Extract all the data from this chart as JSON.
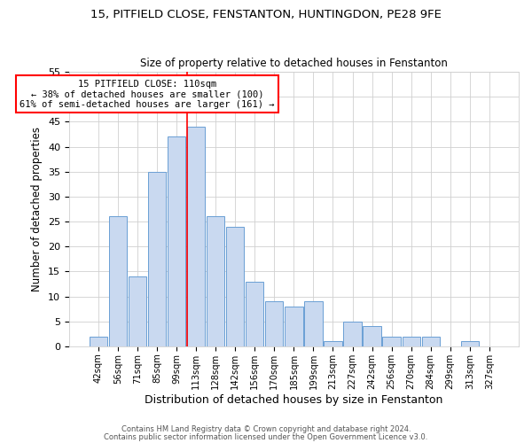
{
  "title": "15, PITFIELD CLOSE, FENSTANTON, HUNTINGDON, PE28 9FE",
  "subtitle": "Size of property relative to detached houses in Fenstanton",
  "xlabel": "Distribution of detached houses by size in Fenstanton",
  "ylabel": "Number of detached properties",
  "bin_labels": [
    "42sqm",
    "56sqm",
    "71sqm",
    "85sqm",
    "99sqm",
    "113sqm",
    "128sqm",
    "142sqm",
    "156sqm",
    "170sqm",
    "185sqm",
    "199sqm",
    "213sqm",
    "227sqm",
    "242sqm",
    "256sqm",
    "270sqm",
    "284sqm",
    "299sqm",
    "313sqm",
    "327sqm"
  ],
  "bar_heights": [
    2,
    26,
    14,
    35,
    42,
    44,
    26,
    24,
    13,
    9,
    8,
    9,
    1,
    5,
    4,
    2,
    2,
    2,
    0,
    1,
    0
  ],
  "bar_color": "#c9d9f0",
  "bar_edge_color": "#6a9fd4",
  "highlight_line_color": "red",
  "annotation_title": "15 PITFIELD CLOSE: 110sqm",
  "annotation_line1": "← 38% of detached houses are smaller (100)",
  "annotation_line2": "61% of semi-detached houses are larger (161) →",
  "annotation_box_color": "white",
  "annotation_box_edge": "red",
  "ylim": [
    0,
    55
  ],
  "yticks": [
    0,
    5,
    10,
    15,
    20,
    25,
    30,
    35,
    40,
    45,
    50,
    55
  ],
  "footer1": "Contains HM Land Registry data © Crown copyright and database right 2024.",
  "footer2": "Contains public sector information licensed under the Open Government Licence v3.0."
}
